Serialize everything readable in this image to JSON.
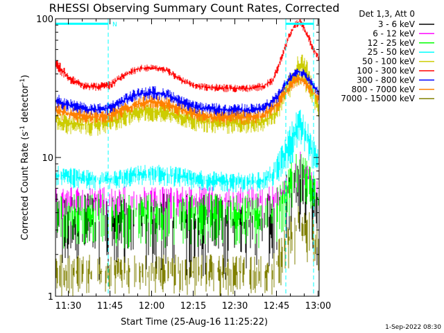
{
  "chart_data": {
    "type": "line",
    "title": "RHESSI Observing Summary Count Rates, Corrected",
    "xlabel": "Start Time (25-Aug-16 11:25:22)",
    "ylabel": "Corrected Count Rate (s⁻¹ detector⁻¹)",
    "ylabel_parts": [
      "Corrected Count Rate (s",
      "-1",
      " detector",
      "-1",
      ")"
    ],
    "yscale": "log",
    "ylim": [
      1,
      100
    ],
    "xlim_min": [
      0,
      95
    ],
    "x_unit": "minutes after 11:25:22",
    "xticks": [
      {
        "label": "11:30",
        "t": 4.63
      },
      {
        "label": "11:45",
        "t": 19.63
      },
      {
        "label": "12:00",
        "t": 34.63
      },
      {
        "label": "12:15",
        "t": 49.63
      },
      {
        "label": "12:30",
        "t": 64.63
      },
      {
        "label": "12:45",
        "t": 79.63
      },
      {
        "label": "13:00",
        "t": 94.63
      }
    ],
    "yticks": [
      {
        "label": "1",
        "v": 1
      },
      {
        "label": "10",
        "v": 10
      },
      {
        "label": "100",
        "v": 100
      }
    ],
    "legend_title": "Det 1,3, Att 0",
    "legend_placement": "right",
    "timestamp": "1-Sep-2022 08:30",
    "markers": {
      "night_label": "N",
      "vlines_t": [
        19.0,
        83.0,
        93.0
      ],
      "bars": [
        {
          "t_start": 0.0,
          "t_end": 19.0
        },
        {
          "t_start": 83.0,
          "t_end": 93.0
        }
      ],
      "bar_value": 92,
      "color": "#00ffff"
    },
    "series": [
      {
        "name": "3 - 6 keV",
        "color": "#000000",
        "t": [
          0,
          10,
          20,
          30,
          40,
          50,
          60,
          70,
          78,
          82,
          86,
          88,
          90,
          95
        ],
        "lo": [
          1.3,
          1.3,
          1.3,
          1.3,
          1.3,
          1.3,
          1.3,
          1.3,
          1.3,
          1.6,
          2.2,
          2.6,
          2.2,
          1.5
        ],
        "hi": [
          5.5,
          5.5,
          5.5,
          5.5,
          5.5,
          5.5,
          5.5,
          5.5,
          5.5,
          7.0,
          9.0,
          10.0,
          9.0,
          6.5
        ],
        "density": 0.45
      },
      {
        "name": "6 - 12 keV",
        "color": "#ff00ff",
        "t": [
          0,
          10,
          20,
          30,
          40,
          50,
          60,
          70,
          78,
          82,
          86,
          88,
          90,
          95
        ],
        "lo": [
          3.6,
          3.6,
          3.6,
          3.6,
          3.6,
          3.6,
          3.6,
          3.6,
          3.6,
          4.2,
          5.5,
          6.3,
          5.8,
          4.4
        ],
        "hi": [
          6.2,
          6.2,
          6.2,
          6.2,
          6.2,
          6.2,
          6.2,
          6.2,
          6.2,
          7.0,
          9.0,
          11.5,
          9.5,
          6.4
        ],
        "density": 0.5
      },
      {
        "name": "12 - 25 keV",
        "color": "#00ff00",
        "t": [
          0,
          10,
          20,
          30,
          40,
          50,
          60,
          70,
          78,
          82,
          86,
          88,
          90,
          95
        ],
        "lo": [
          2.2,
          2.2,
          2.2,
          2.2,
          2.2,
          2.2,
          2.2,
          2.2,
          2.2,
          2.8,
          4.0,
          4.8,
          4.2,
          3.0
        ],
        "hi": [
          5.5,
          5.5,
          5.5,
          5.5,
          5.5,
          5.5,
          5.5,
          5.5,
          5.5,
          6.8,
          10.0,
          12.0,
          10.0,
          6.5
        ],
        "density": 0.55
      },
      {
        "name": "25 - 50 keV",
        "color": "#00ffff",
        "t": [
          0,
          5,
          10,
          15,
          20,
          25,
          30,
          35,
          40,
          45,
          50,
          55,
          60,
          65,
          70,
          75,
          78,
          80,
          82,
          84,
          86,
          88,
          90,
          92,
          95
        ],
        "lo": [
          6.2,
          6.0,
          5.8,
          5.7,
          5.8,
          6.0,
          6.2,
          6.3,
          6.2,
          6.0,
          5.8,
          5.7,
          5.6,
          5.6,
          5.6,
          5.7,
          6.0,
          6.5,
          7.2,
          8.0,
          9.5,
          11.0,
          10.5,
          8.5,
          7.0
        ],
        "hi": [
          8.8,
          8.5,
          8.2,
          8.0,
          8.1,
          8.4,
          8.8,
          9.0,
          8.8,
          8.5,
          8.2,
          8.0,
          7.9,
          7.8,
          7.8,
          8.0,
          9.0,
          10.5,
          13.0,
          16.0,
          20.0,
          23.5,
          20.0,
          15.0,
          11.0
        ],
        "density": 0.9
      },
      {
        "name": "50 - 100 keV",
        "color": "#cccc00",
        "t": [
          0,
          5,
          10,
          15,
          20,
          25,
          30,
          35,
          40,
          45,
          50,
          55,
          60,
          65,
          70,
          75,
          80,
          84,
          86,
          88,
          90,
          92,
          95
        ],
        "lo": [
          15.0,
          14.5,
          14.2,
          14.3,
          15.0,
          16.5,
          17.8,
          18.0,
          17.6,
          16.5,
          15.5,
          15.0,
          14.8,
          14.8,
          14.8,
          15.0,
          18.0,
          26.0,
          30.0,
          33.0,
          30.0,
          25.0,
          18.0
        ],
        "hi": [
          21.0,
          20.5,
          20.0,
          20.0,
          21.0,
          23.0,
          24.5,
          25.0,
          24.5,
          23.0,
          21.5,
          21.0,
          20.5,
          20.5,
          20.5,
          21.0,
          25.0,
          40.0,
          48.0,
          60.0,
          55.0,
          40.0,
          27.0
        ],
        "density": 0.95
      },
      {
        "name": "100 - 300 keV",
        "color": "#ff0000",
        "t": [
          0,
          5,
          10,
          15,
          20,
          25,
          30,
          35,
          40,
          45,
          50,
          55,
          60,
          65,
          70,
          75,
          78,
          80,
          82,
          84,
          86,
          88,
          90,
          92,
          95
        ],
        "lo": [
          42.0,
          34.0,
          30.5,
          30.0,
          31.0,
          37.0,
          41.0,
          42.0,
          40.0,
          34.0,
          31.0,
          30.0,
          29.5,
          29.5,
          29.5,
          30.5,
          33.0,
          40.0,
          52.0,
          68.0,
          82.0,
          90.0,
          76.0,
          60.0,
          48.0
        ],
        "hi": [
          53.0,
          40.0,
          35.0,
          34.5,
          36.0,
          42.0,
          46.5,
          47.0,
          45.0,
          39.0,
          35.0,
          34.0,
          34.0,
          33.5,
          33.5,
          35.0,
          38.0,
          46.0,
          60.0,
          78.0,
          94.0,
          102.0,
          90.0,
          72.0,
          55.0
        ],
        "density": 1.0
      },
      {
        "name": "300 - 800 keV",
        "color": "#0000ff",
        "t": [
          0,
          5,
          10,
          15,
          20,
          25,
          30,
          35,
          40,
          45,
          50,
          55,
          60,
          65,
          70,
          75,
          80,
          84,
          86,
          88,
          90,
          92,
          95
        ],
        "lo": [
          23.0,
          21.0,
          20.0,
          19.5,
          20.0,
          23.0,
          25.5,
          26.0,
          25.0,
          22.5,
          20.5,
          19.8,
          19.5,
          19.5,
          19.5,
          20.0,
          24.0,
          33.0,
          37.0,
          38.0,
          36.0,
          32.0,
          27.0
        ],
        "hi": [
          29.0,
          26.5,
          25.0,
          24.5,
          25.5,
          29.0,
          32.0,
          33.0,
          31.5,
          28.0,
          25.5,
          25.0,
          24.5,
          24.5,
          24.5,
          25.0,
          30.0,
          40.0,
          45.0,
          45.0,
          43.0,
          38.0,
          31.0
        ],
        "density": 1.0
      },
      {
        "name": "800 - 7000 keV",
        "color": "#ff8000",
        "t": [
          0,
          5,
          10,
          15,
          20,
          25,
          30,
          35,
          40,
          45,
          50,
          55,
          60,
          65,
          70,
          75,
          80,
          84,
          86,
          88,
          90,
          92,
          95
        ],
        "lo": [
          19.0,
          18.0,
          17.5,
          17.2,
          17.5,
          19.5,
          21.5,
          22.0,
          21.5,
          19.5,
          18.0,
          17.3,
          17.0,
          17.0,
          17.0,
          17.5,
          21.0,
          28.5,
          31.5,
          33.0,
          31.0,
          28.0,
          24.0
        ],
        "hi": [
          25.0,
          23.5,
          22.5,
          22.0,
          22.5,
          25.0,
          27.5,
          28.5,
          27.5,
          25.0,
          23.0,
          22.0,
          22.0,
          22.0,
          22.0,
          22.5,
          27.0,
          35.0,
          39.0,
          40.5,
          38.0,
          34.0,
          29.0
        ],
        "density": 1.0
      },
      {
        "name": "7000 - 15000 keV",
        "color": "#808000",
        "t": [
          0,
          10,
          20,
          30,
          40,
          50,
          60,
          70,
          78,
          82,
          86,
          88,
          90,
          95
        ],
        "lo": [
          1.0,
          1.0,
          1.0,
          1.0,
          1.0,
          1.0,
          1.0,
          1.0,
          1.0,
          1.2,
          1.6,
          2.0,
          1.8,
          1.3
        ],
        "hi": [
          2.0,
          2.0,
          2.0,
          2.0,
          2.0,
          2.0,
          2.0,
          2.0,
          2.0,
          3.0,
          4.5,
          5.0,
          4.5,
          3.0
        ],
        "density": 0.5
      }
    ]
  }
}
